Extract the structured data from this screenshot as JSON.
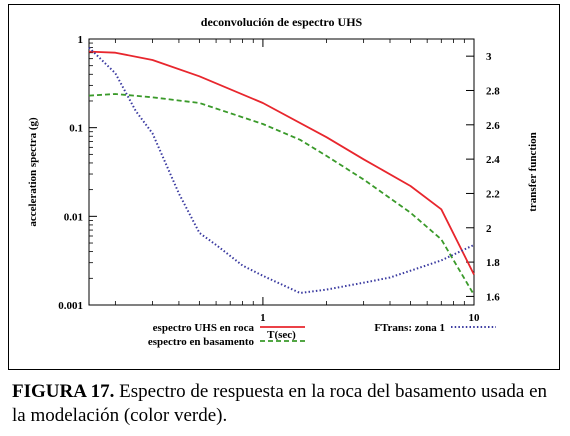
{
  "chart_data": {
    "type": "line",
    "title": "deconvolución de espectro UHS",
    "xlabel": "T(sec)",
    "ylabel": "acceleration spectra (g)",
    "y2label": "transfer function",
    "x_scale": "log",
    "y_scale": "log",
    "xlim": [
      0.15,
      10
    ],
    "ylim": [
      0.001,
      1
    ],
    "y2lim": [
      1.55,
      3.1
    ],
    "x_ticks": [
      1,
      10
    ],
    "x_tick_labels": [
      "1",
      "10"
    ],
    "y_ticks": [
      0.001,
      0.01,
      0.1,
      1
    ],
    "y_tick_labels": [
      "0.001",
      "0.01",
      "0.1",
      "1"
    ],
    "y2_ticks": [
      1.6,
      1.8,
      2,
      2.2,
      2.4,
      2.6,
      2.8,
      3
    ],
    "y2_tick_labels": [
      "1.6",
      "1.8",
      "2",
      "2.2",
      "2.4",
      "2.6",
      "2.8",
      "3"
    ],
    "grid": false,
    "legend_position": "bottom",
    "series": [
      {
        "name": "espectro UHS en roca",
        "axis": "left",
        "color": "#e8262d",
        "style": "solid",
        "x": [
          0.15,
          0.2,
          0.3,
          0.5,
          1,
          2,
          3,
          5,
          7,
          10
        ],
        "y": [
          0.72,
          0.7,
          0.58,
          0.38,
          0.19,
          0.078,
          0.044,
          0.022,
          0.012,
          0.0022
        ]
      },
      {
        "name": "espectro en basamento",
        "axis": "left",
        "color": "#3a9a2a",
        "style": "dashed",
        "x": [
          0.15,
          0.2,
          0.3,
          0.5,
          1,
          1.5,
          2,
          3,
          5,
          7,
          10
        ],
        "y": [
          0.23,
          0.24,
          0.22,
          0.19,
          0.11,
          0.073,
          0.048,
          0.026,
          0.011,
          0.0055,
          0.0013
        ]
      },
      {
        "name": "FTrans: zona 1",
        "axis": "right",
        "color": "#3a3aa0",
        "style": "dotted",
        "x": [
          0.15,
          0.2,
          0.25,
          0.3,
          0.4,
          0.5,
          0.6,
          0.8,
          1,
          1.5,
          2,
          3,
          4,
          5,
          7,
          10
        ],
        "y": [
          3.05,
          2.9,
          2.68,
          2.55,
          2.2,
          1.97,
          1.9,
          1.78,
          1.72,
          1.62,
          1.64,
          1.68,
          1.71,
          1.75,
          1.81,
          1.9
        ]
      }
    ]
  },
  "caption": {
    "label": "FIGURA 17.",
    "text": " Espectro de respuesta en la roca del basamento usada en la modelación (color verde)."
  }
}
